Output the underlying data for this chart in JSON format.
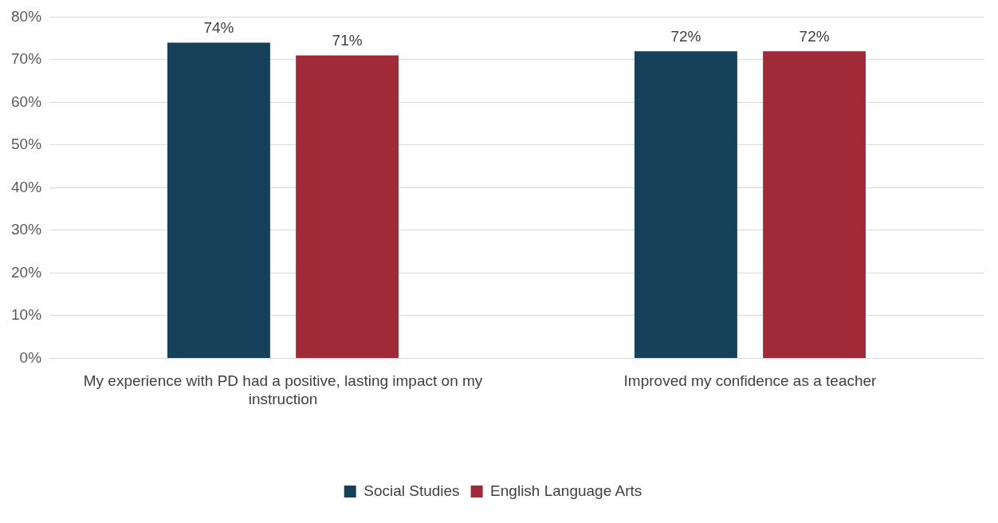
{
  "chart_data": {
    "type": "bar",
    "categories": [
      "My experience with PD had a positive, lasting impact on my instruction",
      "Improved my confidence as a teacher"
    ],
    "series": [
      {
        "name": "Social Studies",
        "color": "#17415a",
        "values": [
          74,
          72
        ],
        "value_labels": [
          "74%",
          "72%"
        ]
      },
      {
        "name": "English Language Arts",
        "color": "#a12a38",
        "values": [
          71,
          72
        ],
        "value_labels": [
          "71%",
          "72%"
        ]
      }
    ],
    "ylim": [
      0,
      80
    ],
    "yticks": [
      {
        "value": 0,
        "label": "0%"
      },
      {
        "value": 10,
        "label": "10%"
      },
      {
        "value": 20,
        "label": "20%"
      },
      {
        "value": 30,
        "label": "30%"
      },
      {
        "value": 40,
        "label": "40%"
      },
      {
        "value": 50,
        "label": "50%"
      },
      {
        "value": 60,
        "label": "60%"
      },
      {
        "value": 70,
        "label": "70%"
      },
      {
        "value": 80,
        "label": "80%"
      }
    ],
    "grid": "y",
    "legend": "bottom"
  }
}
